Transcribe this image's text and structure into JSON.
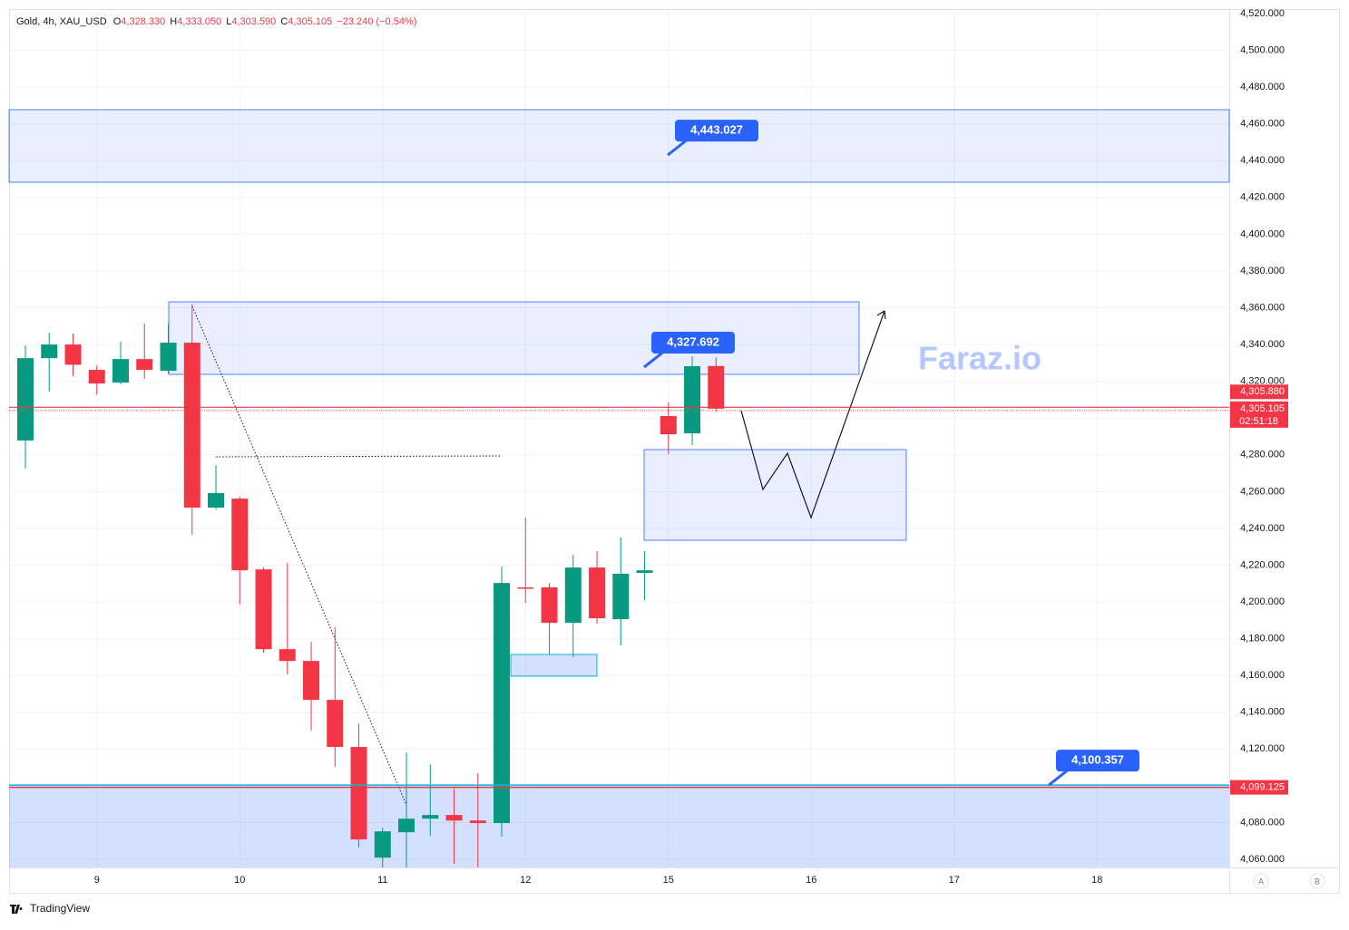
{
  "header": {
    "symbol": "Gold, 4h, XAU_USD",
    "ohlc": [
      {
        "prefix": "O",
        "value": "4,328.330"
      },
      {
        "prefix": "H",
        "value": "4,333.050"
      },
      {
        "prefix": "L",
        "value": "4,303.590"
      },
      {
        "prefix": "C",
        "value": "4,305.105"
      }
    ],
    "change": "−23.240 (−0.54%)"
  },
  "chart_data": {
    "type": "candlestick",
    "up_color": "#089981",
    "down_color": "#f23645",
    "grid": true,
    "x": [
      0,
      1,
      2,
      3,
      4,
      5,
      6,
      7,
      8,
      9,
      10,
      11,
      12,
      13,
      14,
      15,
      16,
      17,
      18,
      19,
      20,
      21,
      22,
      23,
      24,
      25,
      26,
      27,
      28,
      29
    ],
    "open": [
      4287.8,
      4332.6,
      4340,
      4326.2,
      4319.3,
      4332.1,
      4325.7,
      4341,
      4251.3,
      4256.2,
      4217.7,
      4174.3,
      4167.9,
      4146.7,
      4121.1,
      4060.9,
      4074.7,
      4082.1,
      4084.1,
      4081.1,
      4079.7,
      4207.9,
      4207.9,
      4188.6,
      4218.7,
      4190.6,
      4215.8,
      4301.1,
      4291.7,
      4328.33
    ],
    "high": [
      4339.5,
      4346.4,
      4345.9,
      4328.7,
      4341.5,
      4351.4,
      4351.4,
      4362.2,
      4274.4,
      4257.2,
      4218.7,
      4221.2,
      4178.3,
      4186.2,
      4133.9,
      4077.2,
      4118.1,
      4111.7,
      4098.4,
      4106.8,
      4219.2,
      4245.8,
      4210.3,
      4225.6,
      4227.6,
      4235,
      4227.6,
      4308.5,
      4333.6,
      4333.05
    ],
    "low": [
      4272.5,
      4314.4,
      4322.8,
      4312.9,
      4318.3,
      4321.3,
      4324.2,
      4236.5,
      4250.3,
      4198.5,
      4172.4,
      4160.5,
      4130,
      4110.2,
      4066.4,
      4055.6,
      4055.6,
      4072.8,
      4057.5,
      4055.6,
      4072.3,
      4199.5,
      4171.4,
      4169.9,
      4188.1,
      4176.3,
      4200.9,
      4280.4,
      4285.3,
      4303.59
    ],
    "close": [
      4332.6,
      4340,
      4329,
      4318.8,
      4332.1,
      4326.2,
      4341,
      4251.3,
      4259.2,
      4217.2,
      4174.3,
      4167.9,
      4146.7,
      4121.1,
      4070.8,
      4075.2,
      4082.1,
      4084.1,
      4081.1,
      4079.7,
      4210.3,
      4207.4,
      4188.6,
      4218.7,
      4191.1,
      4215.3,
      4217.2,
      4291.2,
      4328.2,
      4305.105
    ],
    "xlim": [
      -0.686,
      50.55
    ],
    "xticks": [
      {
        "value": 3,
        "label": "9"
      },
      {
        "value": 9,
        "label": "10"
      },
      {
        "value": 15,
        "label": "11"
      },
      {
        "value": 21,
        "label": "12"
      },
      {
        "value": 27,
        "label": "15"
      },
      {
        "value": 33,
        "label": "16"
      },
      {
        "value": 39,
        "label": "17"
      },
      {
        "value": 45,
        "label": "18"
      }
    ],
    "ylim": [
      4055.56,
      4522.47
    ],
    "yticks": [
      {
        "value": 4060,
        "label": "4,060.000"
      },
      {
        "value": 4080,
        "label": "4,080.000"
      },
      {
        "value": 4100,
        "label": "4,100.000"
      },
      {
        "value": 4120,
        "label": "4,120.000"
      },
      {
        "value": 4140,
        "label": "4,140.000"
      },
      {
        "value": 4160,
        "label": "4,160.000"
      },
      {
        "value": 4180,
        "label": "4,180.000"
      },
      {
        "value": 4200,
        "label": "4,200.000"
      },
      {
        "value": 4220,
        "label": "4,220.000"
      },
      {
        "value": 4240,
        "label": "4,240.000"
      },
      {
        "value": 4260,
        "label": "4,260.000"
      },
      {
        "value": 4280,
        "label": "4,280.000"
      },
      {
        "value": 4300,
        "label": "4,300.000"
      },
      {
        "value": 4320,
        "label": "4,320.000"
      },
      {
        "value": 4340,
        "label": "4,340.000"
      },
      {
        "value": 4360,
        "label": "4,360.000"
      },
      {
        "value": 4380,
        "label": "4,380.000"
      },
      {
        "value": 4400,
        "label": "4,400.000"
      },
      {
        "value": 4420,
        "label": "4,420.000"
      },
      {
        "value": 4440,
        "label": "4,440.000"
      },
      {
        "value": 4460,
        "label": "4,460.000"
      },
      {
        "value": 4480,
        "label": "4,480.000"
      },
      {
        "value": 4500,
        "label": "4,500.000"
      },
      {
        "value": 4520,
        "label": "4,520.000"
      }
    ],
    "price_labels": [
      {
        "value": 4305.88,
        "label": "4,305.880"
      },
      {
        "value": 4305.105,
        "label": "4,305.105"
      },
      {
        "value": 4099.125,
        "label": "4,099.125"
      }
    ],
    "countdown": "02:51:18",
    "annotations": [
      {
        "value": 4443.027,
        "label": "4,443.027"
      },
      {
        "value": 4327.692,
        "label": "4,327.692"
      },
      {
        "value": 4100.357,
        "label": "4,100.357"
      }
    ],
    "watermark": "Faraz.io"
  },
  "footer": {
    "brand": "TradingView",
    "buttons": [
      "A",
      "B"
    ]
  }
}
